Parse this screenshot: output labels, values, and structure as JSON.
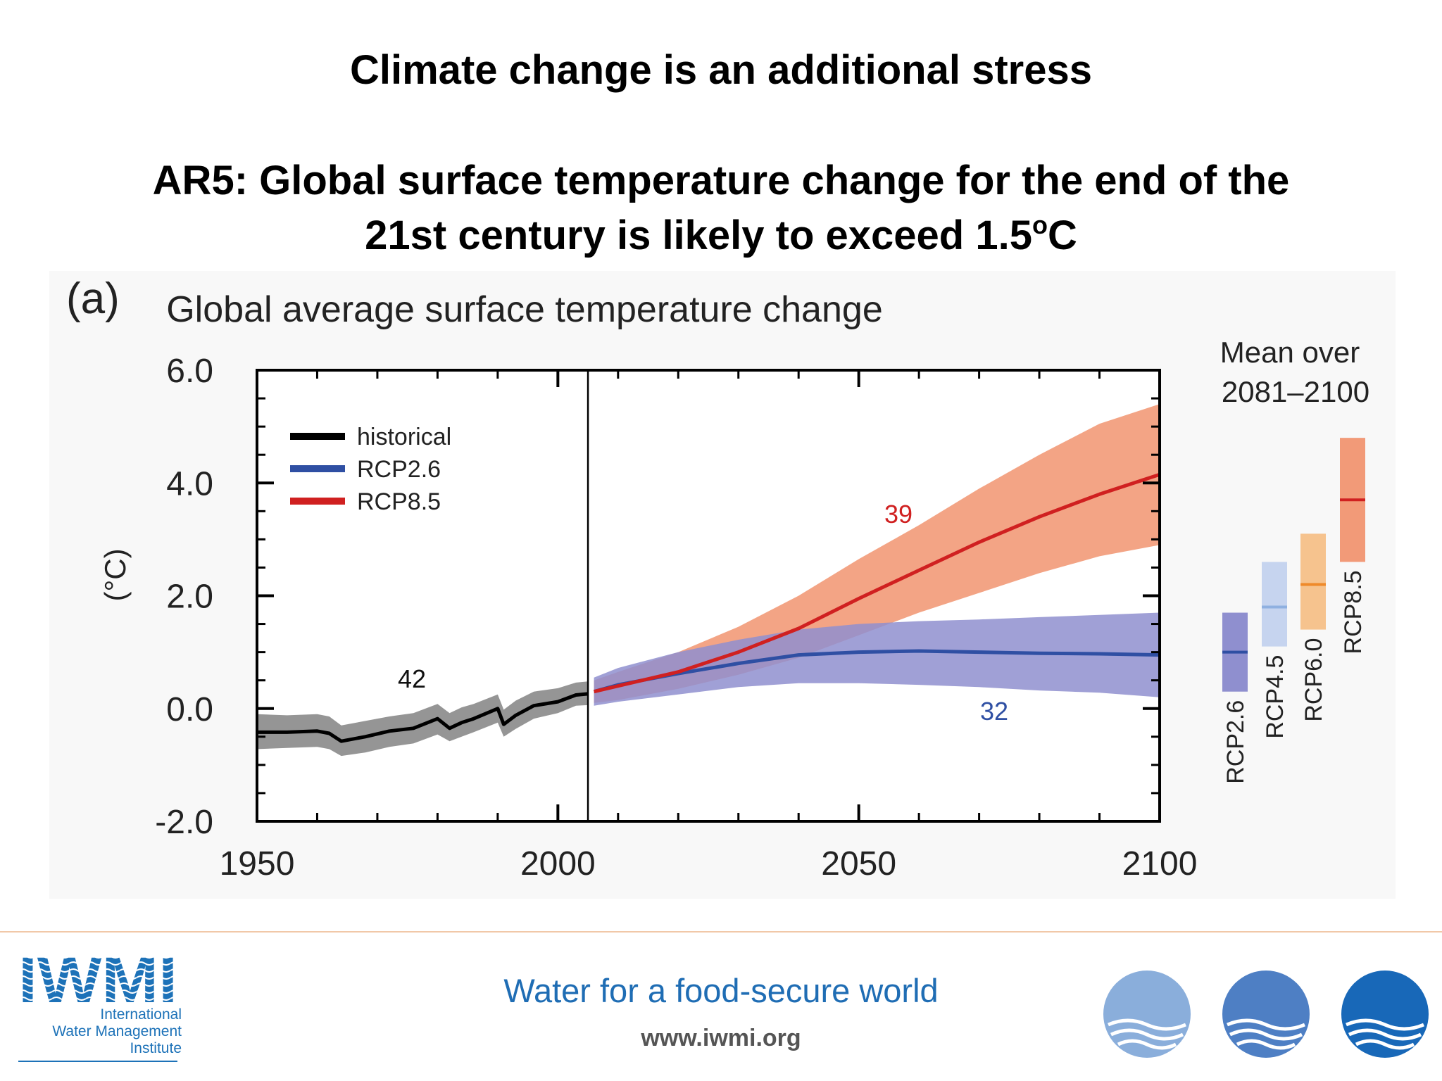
{
  "header": {
    "title": "Climate change is an additional stress",
    "subtitle_line1": "AR5: Global surface temperature change for the end of the",
    "subtitle_line2_text": "21st century is likely to exceed 1.5",
    "subtitle_sup": "o",
    "subtitle_unit": "C"
  },
  "chart_data": {
    "type": "line",
    "panel_label": "(a)",
    "title": "Global average surface temperature change",
    "ylabel": "(°C)",
    "xlabel": "",
    "xlim": [
      1950,
      2100
    ],
    "ylim": [
      -2.0,
      6.0
    ],
    "x_ticks": [
      "1950",
      "2000",
      "2050",
      "2100"
    ],
    "y_ticks": [
      "6.0",
      "4.0",
      "2.0",
      "0.0",
      "-2.0"
    ],
    "legend": {
      "placement": "top-left",
      "entries": [
        "historical",
        "RCP2.6",
        "RCP8.5"
      ]
    },
    "annotations": {
      "historical_models": "42",
      "rcp26_models": "32",
      "rcp85_models": "39"
    },
    "colors": {
      "historical": "#000000",
      "rcp26": "#2f4fa3",
      "rcp85": "#d02020",
      "rcp26_band": "#8f8fcf",
      "rcp85_band": "#f29a78",
      "hist_band": "#8a8a8a"
    },
    "series": [
      {
        "name": "historical",
        "x": [
          1950,
          1955,
          1960,
          1962,
          1964,
          1968,
          1972,
          1976,
          1980,
          1982,
          1984,
          1986,
          1990,
          1991,
          1993,
          1996,
          2000,
          2003,
          2005
        ],
        "values": [
          -0.42,
          -0.42,
          -0.4,
          -0.44,
          -0.58,
          -0.5,
          -0.4,
          -0.35,
          -0.18,
          -0.35,
          -0.25,
          -0.18,
          0.0,
          -0.28,
          -0.12,
          0.05,
          0.12,
          0.24,
          0.26
        ],
        "band_lower": [
          -0.72,
          -0.7,
          -0.68,
          -0.72,
          -0.84,
          -0.78,
          -0.68,
          -0.62,
          -0.46,
          -0.58,
          -0.5,
          -0.42,
          -0.25,
          -0.5,
          -0.36,
          -0.18,
          -0.08,
          0.05,
          0.06
        ],
        "band_upper": [
          -0.1,
          -0.12,
          -0.1,
          -0.14,
          -0.3,
          -0.22,
          -0.14,
          -0.08,
          0.08,
          -0.08,
          0.02,
          0.08,
          0.25,
          -0.02,
          0.14,
          0.3,
          0.36,
          0.46,
          0.48
        ]
      },
      {
        "name": "RCP2.6",
        "x": [
          2006,
          2010,
          2020,
          2030,
          2040,
          2050,
          2060,
          2070,
          2080,
          2090,
          2100
        ],
        "values": [
          0.3,
          0.42,
          0.62,
          0.8,
          0.95,
          1.0,
          1.02,
          1.0,
          0.98,
          0.97,
          0.95
        ],
        "band_lower": [
          0.05,
          0.12,
          0.25,
          0.38,
          0.45,
          0.45,
          0.42,
          0.38,
          0.32,
          0.28,
          0.2
        ],
        "band_upper": [
          0.55,
          0.72,
          1.0,
          1.22,
          1.4,
          1.5,
          1.55,
          1.58,
          1.62,
          1.66,
          1.7
        ]
      },
      {
        "name": "RCP8.5",
        "x": [
          2006,
          2010,
          2020,
          2030,
          2040,
          2050,
          2060,
          2070,
          2080,
          2090,
          2100
        ],
        "values": [
          0.3,
          0.4,
          0.65,
          1.0,
          1.42,
          1.95,
          2.45,
          2.95,
          3.4,
          3.8,
          4.15
        ],
        "band_lower": [
          0.1,
          0.15,
          0.35,
          0.6,
          0.9,
          1.3,
          1.7,
          2.05,
          2.4,
          2.7,
          2.9
        ],
        "band_upper": [
          0.5,
          0.65,
          1.0,
          1.45,
          2.0,
          2.65,
          3.25,
          3.9,
          4.5,
          5.05,
          5.4
        ]
      }
    ],
    "side_panel": {
      "title_line1": "Mean over",
      "title_line2": "2081–2100",
      "bars": [
        {
          "name": "RCP2.6",
          "low": 0.3,
          "high": 1.7,
          "mean": 1.0,
          "fill": "#8f8fcf",
          "line": "#2f4fa3"
        },
        {
          "name": "RCP4.5",
          "low": 1.1,
          "high": 2.6,
          "mean": 1.8,
          "fill": "#c6d4ef",
          "line": "#8fb0e0"
        },
        {
          "name": "RCP6.0",
          "low": 1.4,
          "high": 3.1,
          "mean": 2.2,
          "fill": "#f6c38e",
          "line": "#ef8a2a"
        },
        {
          "name": "RCP8.5",
          "low": 2.6,
          "high": 4.8,
          "mean": 3.7,
          "fill": "#f29a78",
          "line": "#d02020"
        }
      ]
    }
  },
  "footer": {
    "tagline": "Water for a food-secure world",
    "website": "www.iwmi.org",
    "logo_letters": "IWMI",
    "logo_line1": "International",
    "logo_line2": "Water Management",
    "logo_line3": "Institute"
  }
}
